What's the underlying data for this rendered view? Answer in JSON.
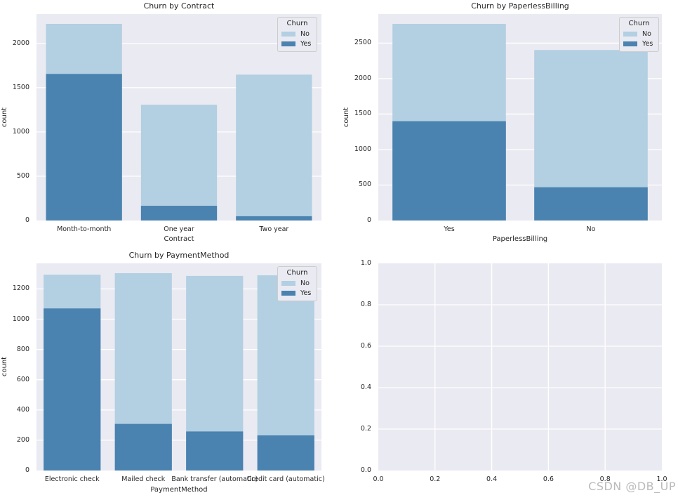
{
  "figure": {
    "background": "#ffffff",
    "axes_background": "#eaeaf2",
    "grid_color": "#ffffff",
    "text_color": "#262626"
  },
  "watermark": {
    "text": "CSDN @DB_UP"
  },
  "chart_data": [
    {
      "type": "bar",
      "title": "Churn by Contract",
      "xlabel": "Contract",
      "ylabel": "count",
      "legend_title": "Churn",
      "legend_position": "upper right",
      "grid": "horizontal",
      "bar_mode": "overlay",
      "categories": [
        "Month-to-month",
        "One year",
        "Two year"
      ],
      "series": [
        {
          "name": "No",
          "color": "#b3cfe2",
          "values": [
            2220,
            1307,
            1647
          ]
        },
        {
          "name": "Yes",
          "color": "#4a82b0",
          "values": [
            1655,
            166,
            48
          ]
        }
      ],
      "ylim": [
        0,
        2331
      ],
      "yticks": [
        0,
        500,
        1000,
        1500,
        2000
      ]
    },
    {
      "type": "bar",
      "title": "Churn by PaperlessBilling",
      "xlabel": "PaperlessBilling",
      "ylabel": "count",
      "legend_title": "Churn",
      "legend_position": "upper right",
      "grid": "horizontal",
      "bar_mode": "overlay",
      "categories": [
        "Yes",
        "No"
      ],
      "series": [
        {
          "name": "No",
          "color": "#b3cfe2",
          "values": [
            2771,
            2403
          ]
        },
        {
          "name": "Yes",
          "color": "#4a82b0",
          "values": [
            1400,
            469
          ]
        }
      ],
      "ylim": [
        0,
        2910
      ],
      "yticks": [
        0,
        500,
        1000,
        1500,
        2000,
        2500
      ]
    },
    {
      "type": "bar",
      "title": "Churn by PaymentMethod",
      "xlabel": "PaymentMethod",
      "ylabel": "count",
      "legend_title": "Churn",
      "legend_position": "upper right",
      "grid": "horizontal",
      "bar_mode": "overlay",
      "categories": [
        "Electronic check",
        "Mailed check",
        "Bank transfer (automatic)",
        "Credit card (automatic)"
      ],
      "series": [
        {
          "name": "No",
          "color": "#b3cfe2",
          "values": [
            1294,
            1304,
            1286,
            1290
          ]
        },
        {
          "name": "Yes",
          "color": "#4a82b0",
          "values": [
            1071,
            308,
            258,
            232
          ]
        }
      ],
      "ylim": [
        0,
        1369
      ],
      "yticks": [
        0,
        200,
        400,
        600,
        800,
        1000,
        1200
      ]
    },
    {
      "type": "empty",
      "title": "",
      "xlabel": "",
      "ylabel": "",
      "grid": "both",
      "xlim": [
        0,
        1.0
      ],
      "ylim": [
        0,
        1.0
      ],
      "xticks": [
        0,
        0.2,
        0.4,
        0.6,
        0.8,
        1.0
      ],
      "yticks": [
        0,
        0.2,
        0.4,
        0.6,
        0.8,
        1.0
      ],
      "tick_format": "0.1f"
    }
  ]
}
